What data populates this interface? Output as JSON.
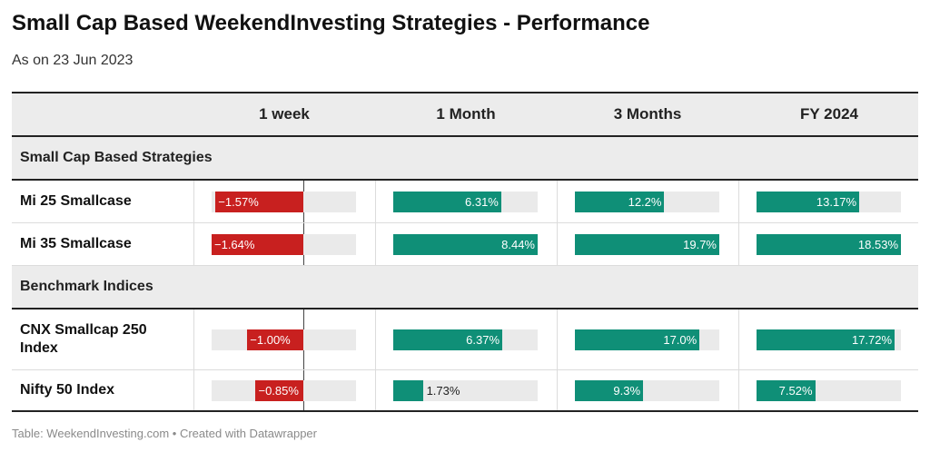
{
  "title": "Small Cap Based WeekendInvesting Strategies - Performance",
  "subtitle": "As on 23 Jun 2023",
  "footer": "Table: WeekendInvesting.com • Created with Datawrapper",
  "colors": {
    "positive": "#0f8f77",
    "negative": "#c8201f",
    "track": "#eaeaea",
    "header_bg": "#ececec"
  },
  "columns": [
    "1 week",
    "1 Month",
    "3 Months",
    "FY 2024"
  ],
  "groups": [
    {
      "label": "Small Cap Based Strategies",
      "rows": [
        {
          "name": "Mi 25 Smallcase",
          "labels": [
            "−1.57%",
            "6.31%",
            "12.2%",
            "13.17%"
          ]
        },
        {
          "name": "Mi 35 Smallcase",
          "labels": [
            "−1.64%",
            "8.44%",
            "19.7%",
            "18.53%"
          ]
        }
      ]
    },
    {
      "label": "Benchmark Indices",
      "rows": [
        {
          "name": "CNX Smallcap 250 Index",
          "labels": [
            "−1.00%",
            "6.37%",
            "17.0%",
            "17.72%"
          ]
        },
        {
          "name": "Nifty 50 Index",
          "labels": [
            "−0.85%",
            "1.73%",
            "9.3%",
            "7.52%"
          ]
        }
      ]
    }
  ],
  "chart_data": {
    "type": "table",
    "title": "Small Cap Based WeekendInvesting Strategies - Performance",
    "subtitle": "As on 23 Jun 2023",
    "columns": [
      "1 week",
      "1 Month",
      "3 Months",
      "FY 2024"
    ],
    "unit": "%",
    "rows": [
      {
        "group": "Small Cap Based Strategies",
        "name": "Mi 25 Smallcase",
        "values": [
          -1.57,
          6.31,
          12.2,
          13.17
        ]
      },
      {
        "group": "Small Cap Based Strategies",
        "name": "Mi 35 Smallcase",
        "values": [
          -1.64,
          8.44,
          19.7,
          18.53
        ]
      },
      {
        "group": "Benchmark Indices",
        "name": "CNX Smallcap 250 Index",
        "values": [
          -1.0,
          6.37,
          17.0,
          17.72
        ]
      },
      {
        "group": "Benchmark Indices",
        "name": "Nifty 50 Index",
        "values": [
          -0.85,
          1.73,
          9.3,
          7.52
        ]
      }
    ],
    "column_ranges": [
      [
        -1.64,
        0.95
      ],
      [
        0,
        8.44
      ],
      [
        0,
        19.7
      ],
      [
        0,
        18.53
      ]
    ]
  }
}
